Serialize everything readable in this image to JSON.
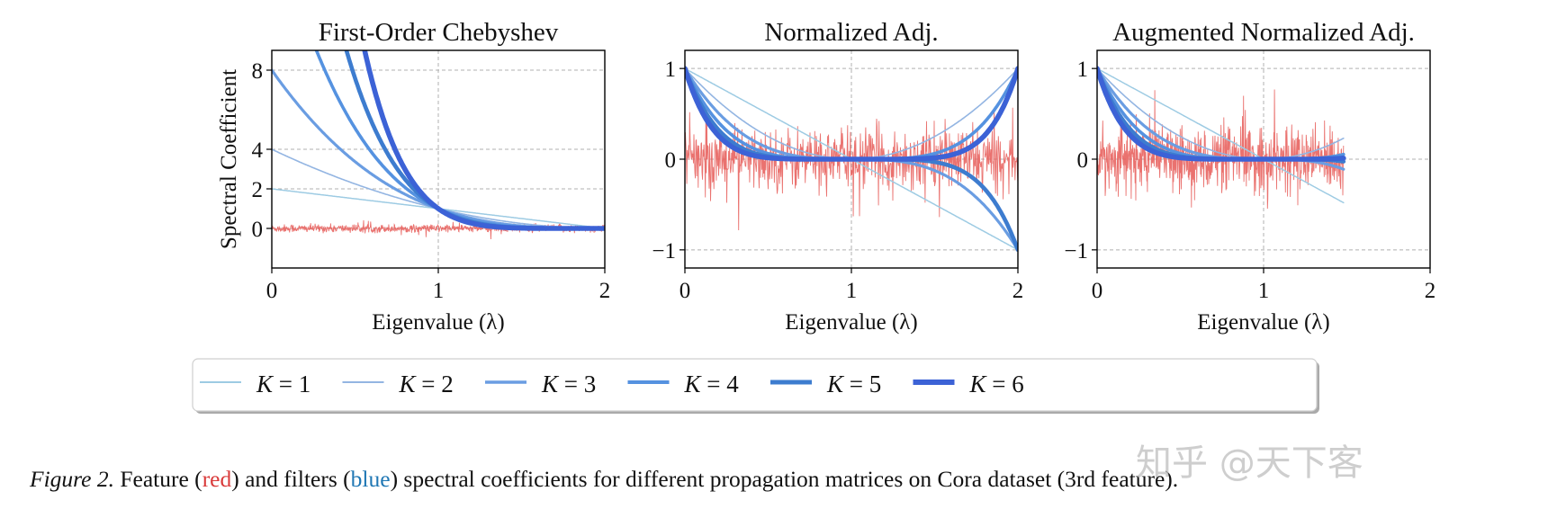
{
  "chart_data": [
    {
      "type": "line",
      "title": "First-Order Chebyshev",
      "xlabel": "Eigenvalue (λ)",
      "ylabel": "Spectral Coefficient",
      "xlim": [
        0,
        2
      ],
      "ylim": [
        -2,
        9
      ],
      "xticks": [
        0,
        1,
        2
      ],
      "yticks": [
        0,
        2,
        4,
        8
      ],
      "grid": true,
      "filter": "(2-λ)^K",
      "x_range": [
        0,
        2
      ]
    },
    {
      "type": "line",
      "title": "Normalized Adj.",
      "xlabel": "Eigenvalue (λ)",
      "ylabel": "",
      "xlim": [
        0,
        2
      ],
      "ylim": [
        -1.2,
        1.2
      ],
      "xticks": [
        0,
        1,
        2
      ],
      "yticks": [
        -1,
        0,
        1
      ],
      "grid": true,
      "filter": "(1-λ)^K",
      "x_range": [
        0,
        2
      ]
    },
    {
      "type": "line",
      "title": "Augmented Normalized Adj.",
      "xlabel": "Eigenvalue (λ)",
      "ylabel": "",
      "xlim": [
        0,
        2
      ],
      "ylim": [
        -1.2,
        1.2
      ],
      "xticks": [
        0,
        1,
        2
      ],
      "yticks": [
        -1,
        0,
        1
      ],
      "grid": true,
      "filter": "(1-λ)^K",
      "x_range": [
        0,
        1.48
      ]
    }
  ],
  "series": [
    {
      "name": "K = 1",
      "k": 1,
      "color": "#9dcbe3"
    },
    {
      "name": "K = 2",
      "k": 2,
      "color": "#93b5e2"
    },
    {
      "name": "K = 3",
      "k": 3,
      "color": "#6a9de2"
    },
    {
      "name": "K = 4",
      "k": 4,
      "color": "#5592e0"
    },
    {
      "name": "K = 5",
      "k": 5,
      "color": "#3d7ccf"
    },
    {
      "name": "K = 6",
      "k": 6,
      "color": "#3c62d6"
    }
  ],
  "feature_color": "#e8635f",
  "legend": {
    "placement": "bottom"
  },
  "caption": {
    "label": "Figure 2.",
    "part1": " Feature (",
    "red_word": "red",
    "part2": ") and filters (",
    "blue_word": "blue",
    "part3": ") spectral coefficients for different propagation matrices on Cora dataset (3rd feature)."
  },
  "watermark": "知乎 @天下客"
}
